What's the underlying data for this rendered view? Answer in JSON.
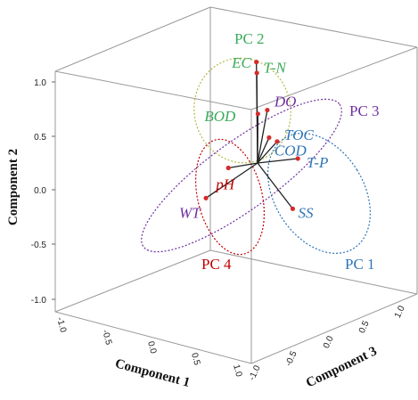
{
  "chart_data": {
    "type": "scatter",
    "title": "",
    "axes": {
      "x": {
        "label": "Component 1",
        "ticks": [
          "-1.0",
          "-0.5",
          "0.0",
          "0.5",
          "1.0"
        ],
        "range": [
          -1,
          1
        ]
      },
      "y": {
        "label": "Component 2",
        "ticks": [
          "-1.0",
          "-0.5",
          "0.0",
          "0.5",
          "1.0"
        ],
        "range": [
          -1,
          1
        ]
      },
      "z": {
        "label": "Component 3",
        "ticks": [
          "-1.0",
          "-0.5",
          "0.0",
          "0.5",
          "1.0"
        ],
        "range": [
          -1,
          1
        ]
      }
    },
    "grid": false,
    "variables": [
      {
        "name": "EC",
        "x": -0.05,
        "y": 0.78,
        "z": 0.05,
        "group": "PC 2"
      },
      {
        "name": "T-N",
        "x": 0.04,
        "y": 0.9,
        "z": -0.08,
        "group": "PC 2"
      },
      {
        "name": "BOD",
        "x": 0.08,
        "y": 0.45,
        "z": -0.1,
        "group": "PC 2"
      },
      {
        "name": "DO",
        "x": 0.2,
        "y": 0.48,
        "z": -0.05,
        "group": "PC 3"
      },
      {
        "name": "WT",
        "x": -0.82,
        "y": -0.33,
        "z": -0.06,
        "group": "PC 3"
      },
      {
        "name": "TOC",
        "x": 0.32,
        "y": 0.2,
        "z": 0.01,
        "group": "PC 1"
      },
      {
        "name": "COD",
        "x": 0.23,
        "y": 0.24,
        "z": -0.05,
        "group": "PC 1"
      },
      {
        "name": "T-P",
        "x": 0.45,
        "y": 0.01,
        "z": 0.3,
        "group": "PC 1"
      },
      {
        "name": "SS",
        "x": 0.38,
        "y": -0.43,
        "z": 0.28,
        "group": "PC 1"
      },
      {
        "name": "pH",
        "x": -0.4,
        "y": -0.04,
        "z": -0.12,
        "group": "PC 4"
      }
    ],
    "groups": [
      {
        "name": "PC 1",
        "color": "#2e75b6"
      },
      {
        "name": "PC 2",
        "color": "#3aaa5a"
      },
      {
        "name": "PC 3",
        "color": "#7030a0"
      },
      {
        "name": "PC 4",
        "color": "#c00000"
      }
    ],
    "colors": {
      "box_lines": "#9a9a9a",
      "vector_lines": "#222222",
      "points": "#d62b2b",
      "ellipse_pc1": "#2e75b6",
      "ellipse_pc2": "#b7b845",
      "ellipse_pc3": "#7030a0",
      "ellipse_pc4": "#c00000"
    }
  }
}
